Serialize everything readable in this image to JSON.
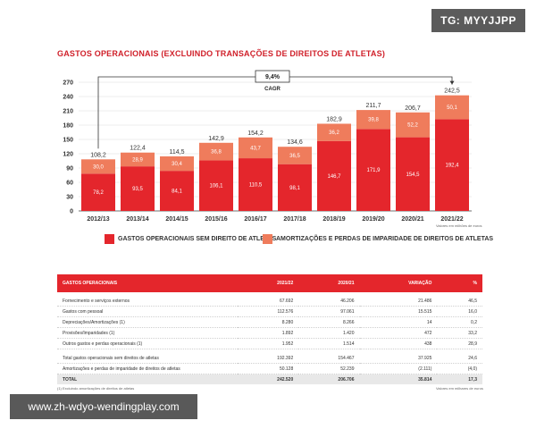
{
  "badge": "TG: MYYJJPP",
  "watermark": "www.zh-wdyo-wendingplay.com",
  "title": "GASTOS OPERACIONAIS (EXCLUINDO TRANSAÇÕES DE DIREITOS DE ATLETAS)",
  "cagr": {
    "value": "9,4%",
    "label": "CAGR"
  },
  "chart_note": "Valores em milhões de euros",
  "table_note": "Valores em milhares de euros",
  "table_footnote": "(1) Excluindo amortizações de direitos de atletas",
  "colors": {
    "dark": "#e4262c",
    "light": "#ef7c5c",
    "brand": "#d0202a"
  },
  "chart_data": {
    "type": "bar",
    "stacked": true,
    "title": "GASTOS OPERACIONAIS (EXCLUINDO TRANSAÇÕES DE DIREITOS DE ATLETAS)",
    "categories": [
      "2012/13",
      "2013/14",
      "2014/15",
      "2015/16",
      "2016/17",
      "2017/18",
      "2018/19",
      "2019/20",
      "2020/21",
      "2021/22"
    ],
    "series": [
      {
        "name": "GASTOS OPERACIONAIS SEM DIREITO DE ATLETAS",
        "color": "#e4262c",
        "values": [
          78.2,
          93.5,
          84.1,
          106.1,
          110.5,
          98.1,
          146.7,
          171.9,
          154.5,
          192.4
        ],
        "labels": [
          "78,2",
          "93,5",
          "84,1",
          "106,1",
          "110,5",
          "98,1",
          "146,7",
          "171,9",
          "154,5",
          "192,4"
        ]
      },
      {
        "name": "AMORTIZAÇÕES E PERDAS DE IMPARIDADE DE DIREITOS DE ATLETAS",
        "color": "#ef7c5c",
        "values": [
          30.0,
          28.9,
          30.4,
          36.8,
          43.7,
          36.5,
          36.2,
          39.8,
          52.2,
          50.1
        ],
        "labels": [
          "30,0",
          "28,9",
          "30,4",
          "36,8",
          "43,7",
          "36,5",
          "36,2",
          "39,8",
          "52,2",
          "50,1"
        ]
      }
    ],
    "totals": [
      "108,2",
      "122,4",
      "114,5",
      "142,9",
      "154,2",
      "134,6",
      "182,9",
      "211,7",
      "206,7",
      "242,5"
    ],
    "yticks": [
      "0",
      "30",
      "60",
      "90",
      "120",
      "150",
      "180",
      "210",
      "240",
      "270"
    ],
    "ylim": [
      0,
      270
    ],
    "legend": "bottom"
  },
  "table": {
    "headers": [
      "GASTOS OPERACIONAIS",
      "2021/22",
      "2020/21",
      "VARIAÇÃO",
      "%"
    ],
    "rows": [
      [
        "Fornecimento e serviços externos",
        "67.692",
        "46.206",
        "21.486",
        "46,5"
      ],
      [
        "Gastos com pessoal",
        "112.576",
        "97.061",
        "15.515",
        "16,0"
      ],
      [
        "Depreciações/Amortizações (1)",
        "8.280",
        "8.266",
        "14",
        "0,2"
      ],
      [
        "Provisões/Imparidades (1)",
        "1.892",
        "1.420",
        "472",
        "33,2"
      ],
      [
        "Outros gastos e perdas operacionais (1)",
        "1.952",
        "1.514",
        "438",
        "28,9"
      ]
    ],
    "subtotal": [
      "Total gastos operacionais sem direitos de atletas",
      "192.392",
      "154.467",
      "37.925",
      "24,6"
    ],
    "amort": [
      "Amortizações e perdas de imparidade de direitos de atletas",
      "50.128",
      "52.239",
      "(2.111)",
      "(4,0)"
    ],
    "total": [
      "TOTAL",
      "242.520",
      "206.706",
      "35.814",
      "17,3"
    ]
  }
}
